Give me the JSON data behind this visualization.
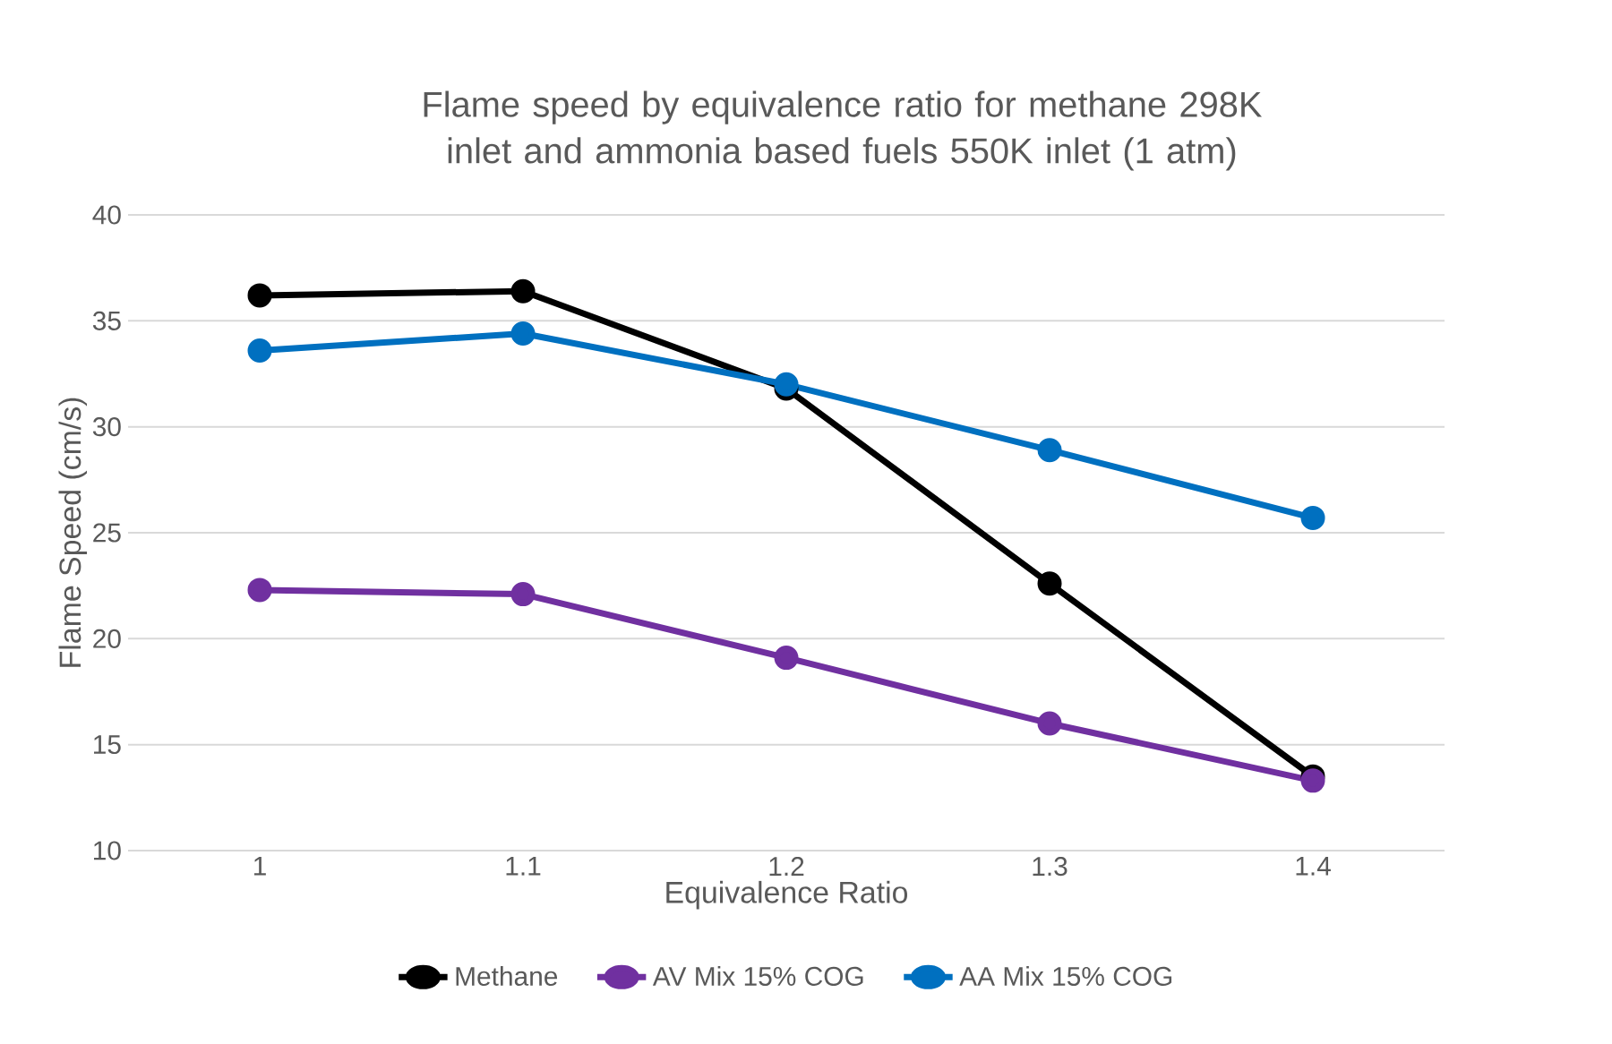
{
  "chart_data": {
    "type": "line",
    "title": "Flame speed by equivalence ratio for methane 298K inlet and ammonia based fuels 550K inlet (1 atm)",
    "xlabel": "Equivalence Ratio",
    "ylabel": "Flame Speed (cm/s)",
    "categories": [
      "1",
      "1.1",
      "1.2",
      "1.3",
      "1.4"
    ],
    "series": [
      {
        "name": "Methane",
        "color": "#000000",
        "values": [
          36.2,
          36.4,
          31.8,
          22.6,
          13.5
        ]
      },
      {
        "name": "AV Mix 15% COG",
        "color": "#7030a0",
        "values": [
          22.3,
          22.1,
          19.1,
          16.0,
          13.3
        ]
      },
      {
        "name": "AA Mix 15% COG",
        "color": "#0070c0",
        "values": [
          33.6,
          34.4,
          32.0,
          28.9,
          25.7
        ]
      }
    ],
    "ylim": [
      10,
      40
    ],
    "yticks": [
      10,
      15,
      20,
      25,
      30,
      35,
      40
    ],
    "grid": "y",
    "legend": "bottom",
    "marker": "circle",
    "line_style": "solid"
  }
}
